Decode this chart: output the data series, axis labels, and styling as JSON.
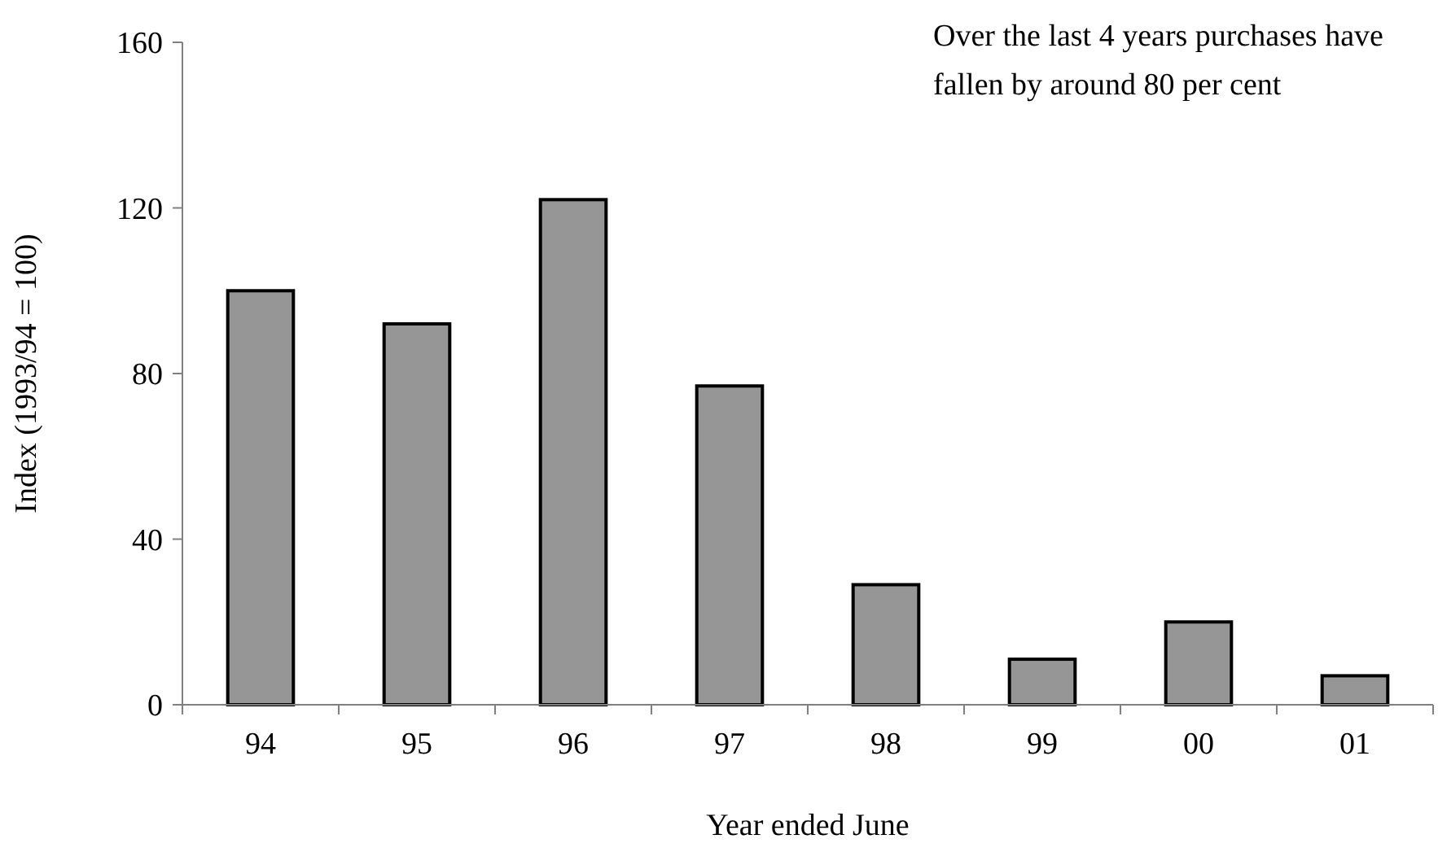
{
  "chart_data": {
    "type": "bar",
    "xlabel": "Year ended June",
    "ylabel": "Index (1993/94 = 100)",
    "categories": [
      "94",
      "95",
      "96",
      "97",
      "98",
      "99",
      "00",
      "01"
    ],
    "values": [
      100,
      92,
      122,
      77,
      29,
      11,
      20,
      7
    ],
    "color": "#969696",
    "ylim": [
      0,
      160
    ],
    "yticks": [
      0,
      40,
      80,
      120,
      160
    ],
    "grid": false,
    "annotations": [
      "Over the last 4 years purchases have fallen by around 80 per cent"
    ]
  }
}
